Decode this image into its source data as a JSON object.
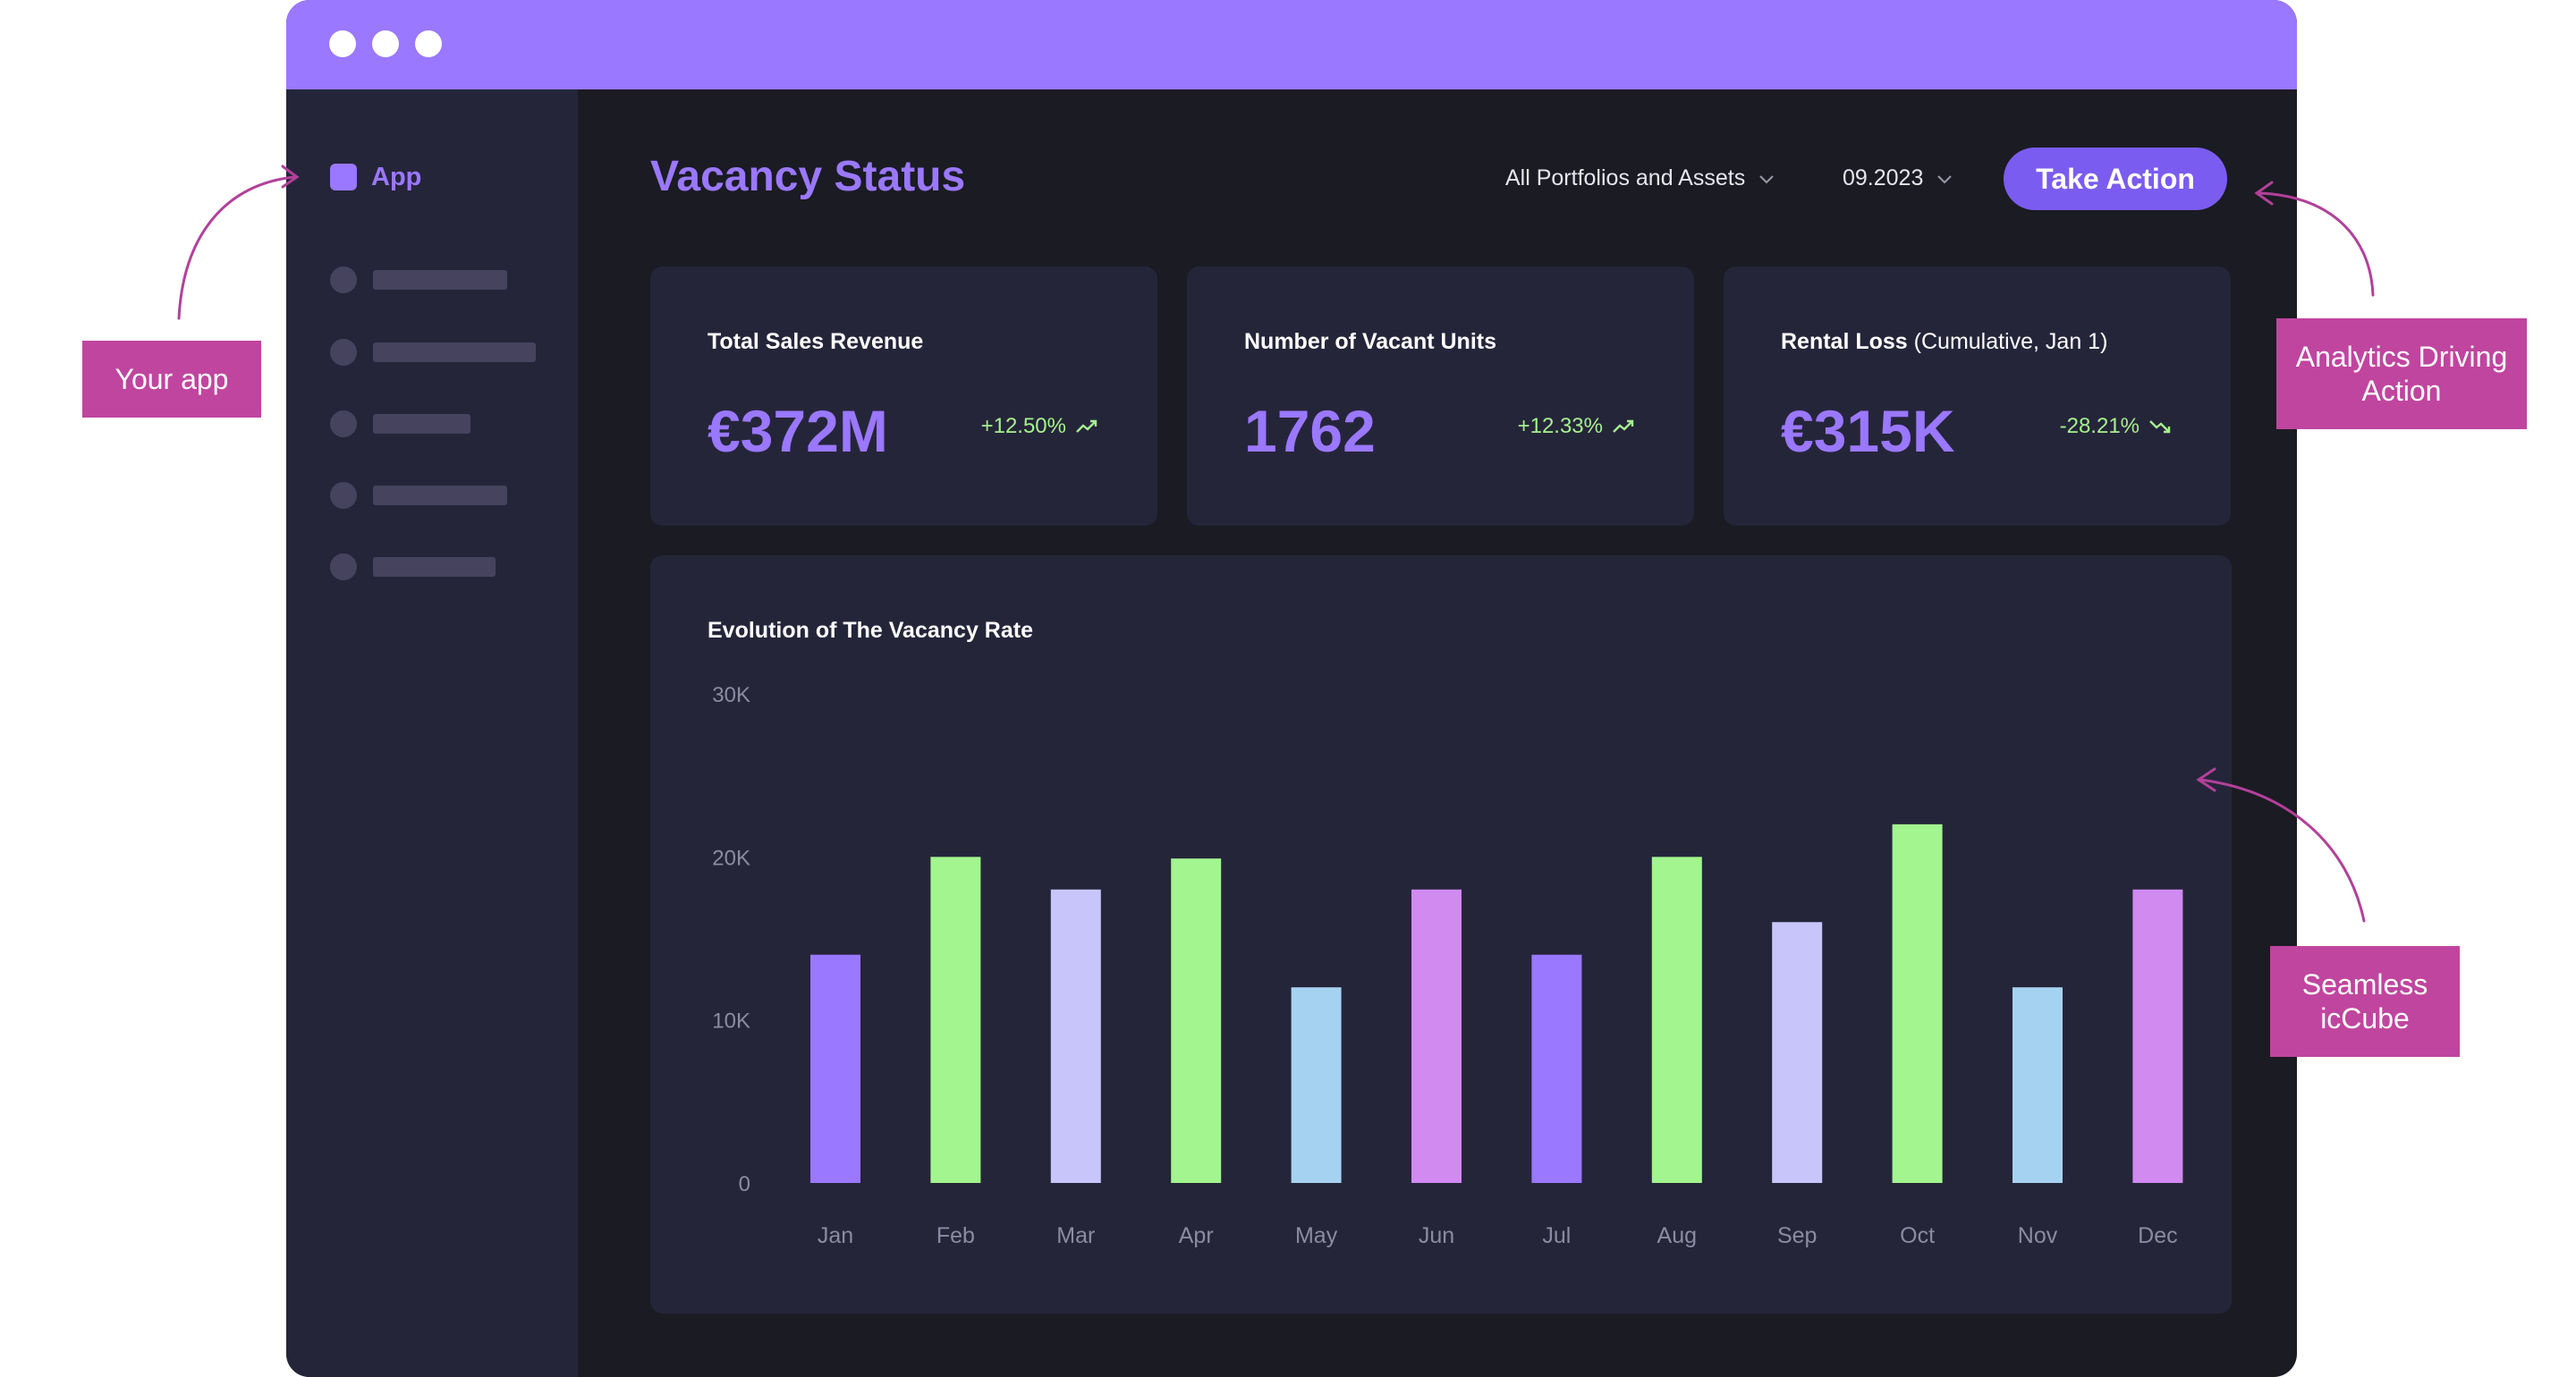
{
  "app": {
    "label": "App"
  },
  "header": {
    "title": "Vacancy Status",
    "portfolio_filter": "All Portfolios and Assets",
    "date_filter": "09.2023",
    "action_button": "Take Action"
  },
  "cards": [
    {
      "title": "Total Sales Revenue",
      "subtitle": "",
      "value": "€372M",
      "change": "+12.50%",
      "trend": "up"
    },
    {
      "title": "Number of Vacant Units",
      "subtitle": "",
      "value": "1762",
      "change": "+12.33%",
      "trend": "up"
    },
    {
      "title": "Rental Loss",
      "subtitle": "(Cumulative, Jan 1)",
      "value": "€315K",
      "change": "-28.21%",
      "trend": "down"
    }
  ],
  "chart_title": "Evolution of The Vacancy Rate",
  "chart_data": {
    "type": "bar",
    "categories": [
      "Jan",
      "Feb",
      "Mar",
      "Apr",
      "May",
      "Jun",
      "Jul",
      "Aug",
      "Sep",
      "Oct",
      "Nov",
      "Dec"
    ],
    "values": [
      14000,
      20000,
      18000,
      19900,
      12000,
      18000,
      14000,
      20000,
      16000,
      22000,
      12000,
      18000
    ],
    "bar_colors": [
      "#9a78ff",
      "#a2f58f",
      "#c8c5fb",
      "#a2f58f",
      "#a6d2f1",
      "#d08af0",
      "#9a78ff",
      "#a2f58f",
      "#c8c5fb",
      "#a2f58f",
      "#a6d2f1",
      "#d08af0"
    ],
    "y_ticks": [
      "0",
      "10K",
      "20K",
      "30K"
    ],
    "ylim": [
      0,
      30000
    ],
    "title": "Evolution of The Vacancy Rate",
    "xlabel": "",
    "ylabel": "",
    "grid": false
  },
  "callouts": {
    "your_app": "Your app",
    "analytics": "Analytics Driving Action",
    "seamless": "Seamless icCube"
  },
  "colors": {
    "accent": "#9a78ff",
    "button": "#7b5cf0",
    "positive": "#a7f08f",
    "callout": "#c0459f",
    "background": "#1b1b23",
    "panel": "#25253a"
  }
}
